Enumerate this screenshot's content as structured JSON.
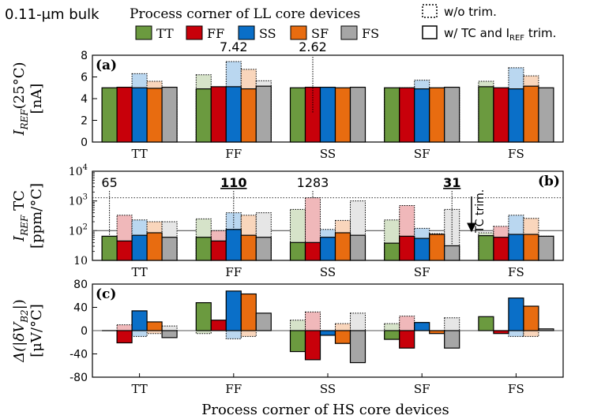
{
  "header": {
    "tech_label": "0.11-μm bulk",
    "legend_title": "Process corner of LL core devices",
    "style_wo": "w/o trim.",
    "style_w_prefix": "w/ TC and I",
    "style_w_sub": "REF",
    "style_w_suffix": " trim."
  },
  "legend": [
    {
      "name": "TT",
      "color": "#6b9a3f"
    },
    {
      "name": "FF",
      "color": "#c8000a"
    },
    {
      "name": "SS",
      "color": "#0a6fc8"
    },
    {
      "name": "SF",
      "color": "#e86c10"
    },
    {
      "name": "FS",
      "color": "#a6a6a6"
    }
  ],
  "x_axis_title": "Process corner of HS core devices",
  "chart_data": [
    {
      "id": "a",
      "type": "bar",
      "panel_label": "(a)",
      "ylabel_main": "I",
      "ylabel_sub": "REF",
      "ylabel_rest": "(25°C)",
      "ylabel_unit": "[nA]",
      "ylim": [
        0,
        8
      ],
      "yticks": [
        "0",
        "2",
        "4",
        "6",
        "8"
      ],
      "categories": [
        "TT",
        "FF",
        "SS",
        "SF",
        "FS"
      ],
      "series": [
        {
          "name": "TT",
          "trimmed": [
            5.0,
            4.9,
            5.0,
            5.0,
            5.1
          ],
          "untrimmed": [
            4.95,
            6.2,
            4.9,
            4.95,
            5.6
          ]
        },
        {
          "name": "FF",
          "trimmed": [
            5.05,
            5.1,
            5.05,
            5.0,
            5.0
          ],
          "untrimmed": [
            5.05,
            5.0,
            2.62,
            5.0,
            4.3
          ]
        },
        {
          "name": "SS",
          "trimmed": [
            5.0,
            5.1,
            5.05,
            4.9,
            4.9
          ],
          "untrimmed": [
            6.3,
            7.42,
            4.9,
            5.7,
            6.85
          ]
        },
        {
          "name": "SF",
          "trimmed": [
            4.95,
            4.9,
            5.0,
            5.0,
            5.15
          ],
          "untrimmed": [
            5.6,
            6.7,
            4.3,
            4.9,
            6.1
          ]
        },
        {
          "name": "FS",
          "trimmed": [
            5.05,
            5.15,
            5.05,
            5.05,
            5.0
          ],
          "untrimmed": [
            4.3,
            5.65,
            3.2,
            4.9,
            4.9
          ]
        }
      ],
      "annotations": [
        {
          "text": "7.42",
          "series": 2,
          "category": 1,
          "value": 7.42
        },
        {
          "text": "2.62",
          "series": 1,
          "category": 2,
          "value": 2.62
        }
      ]
    },
    {
      "id": "b",
      "type": "bar",
      "scale": "log",
      "panel_label": "(b)",
      "ylabel_main": "I",
      "ylabel_sub": "REF",
      "ylabel_rest": " TC",
      "ylabel_unit": "[ppm/°C]",
      "ylim": [
        10,
        10000
      ],
      "yticks": [
        {
          "base": "10",
          "exp": ""
        },
        {
          "base": "10",
          "exp": "2"
        },
        {
          "base": "10",
          "exp": "3"
        },
        {
          "base": "10",
          "exp": "4"
        }
      ],
      "categories": [
        "TT",
        "FF",
        "SS",
        "SF",
        "FS"
      ],
      "series": [
        {
          "name": "TT",
          "trimmed": [
            65,
            60,
            40,
            38,
            68
          ],
          "untrimmed": [
            55,
            250,
            520,
            230,
            85
          ]
        },
        {
          "name": "FF",
          "trimmed": [
            45,
            45,
            40,
            65,
            60
          ],
          "untrimmed": [
            330,
            100,
            1283,
            700,
            140
          ]
        },
        {
          "name": "SS",
          "trimmed": [
            70,
            110,
            60,
            55,
            75
          ],
          "untrimmed": [
            230,
            400,
            110,
            120,
            330
          ]
        },
        {
          "name": "SF",
          "trimmed": [
            85,
            70,
            85,
            75,
            75
          ],
          "untrimmed": [
            200,
            330,
            220,
            80,
            260
          ]
        },
        {
          "name": "FS",
          "trimmed": [
            60,
            60,
            70,
            31,
            65
          ],
          "untrimmed": [
            200,
            400,
            1000,
            520,
            65
          ]
        }
      ],
      "ref_lines": [
        {
          "value": 100,
          "style": "solid"
        },
        {
          "value": 1283,
          "style": "dotted"
        }
      ],
      "annotations": [
        {
          "text": "65",
          "series": 0,
          "category": 0,
          "value": 65,
          "bold": false
        },
        {
          "text": "110",
          "series": 2,
          "category": 1,
          "value": 110,
          "bold": true
        },
        {
          "text": "1283",
          "series": 1,
          "category": 2,
          "value": 1283,
          "bold": false
        },
        {
          "text": "31",
          "series": 4,
          "category": 3,
          "value": 31,
          "bold": true
        }
      ],
      "tc_trim_label": "TC trim."
    },
    {
      "id": "c",
      "type": "bar",
      "panel_label": "(c)",
      "ylabel_main": "Δ(|δV",
      "ylabel_sub": "B2",
      "ylabel_rest": "|)",
      "ylabel_unit": "[μV/°C]",
      "ylim": [
        -80,
        80
      ],
      "yticks": [
        "80",
        "40",
        "0",
        "-40",
        "-80"
      ],
      "categories": [
        "TT",
        "FF",
        "SS",
        "SF",
        "FS"
      ],
      "series": [
        {
          "name": "TT",
          "trimmed": [
            0,
            48,
            -36,
            -15,
            24
          ],
          "untrimmed": [
            0,
            -5,
            18,
            12,
            0
          ]
        },
        {
          "name": "FF",
          "trimmed": [
            -21,
            18,
            -50,
            -30,
            -5
          ],
          "untrimmed": [
            10,
            0,
            32,
            25,
            -3
          ]
        },
        {
          "name": "SS",
          "trimmed": [
            34,
            68,
            -8,
            14,
            56
          ],
          "untrimmed": [
            -10,
            -14,
            0,
            0,
            -10
          ]
        },
        {
          "name": "SF",
          "trimmed": [
            15,
            63,
            -22,
            -5,
            42
          ],
          "untrimmed": [
            -5,
            -10,
            12,
            0,
            -10
          ]
        },
        {
          "name": "FS",
          "trimmed": [
            -12,
            30,
            -55,
            -30,
            3
          ],
          "untrimmed": [
            8,
            0,
            30,
            22,
            0
          ]
        }
      ]
    }
  ]
}
